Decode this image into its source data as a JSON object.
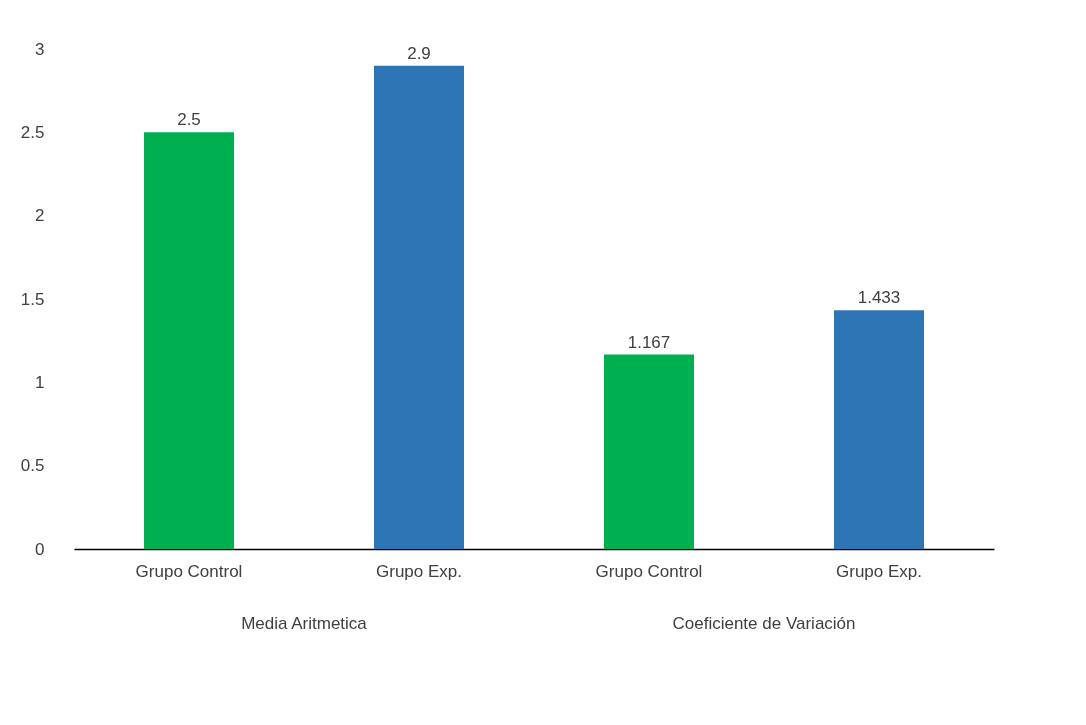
{
  "chart_data": {
    "type": "bar",
    "categories": [
      "Grupo Control",
      "Grupo Exp.",
      "Grupo Control",
      "Grupo Exp."
    ],
    "values": [
      2.5,
      2.9,
      1.167,
      1.433
    ],
    "colors": [
      "#00b050",
      "#2e75b6",
      "#00b050",
      "#2e75b6"
    ],
    "ylim": [
      0,
      3
    ],
    "yticks": [
      0,
      0.5,
      1,
      1.5,
      2,
      2.5,
      3
    ],
    "data_labels": true,
    "grid": false,
    "legend": false,
    "annotations": [
      "Media Aritmetica",
      "Coeficiente de Variación"
    ]
  }
}
